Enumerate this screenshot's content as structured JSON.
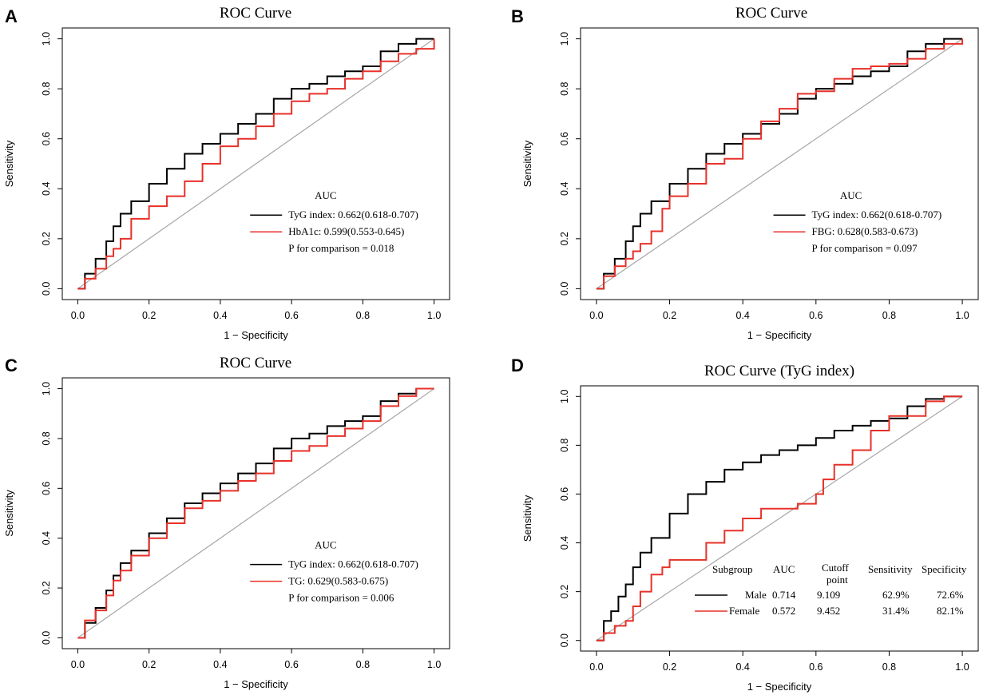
{
  "colors": {
    "black_series": "#000000",
    "red_series": "#e8312a",
    "reference": "#a6a6a6"
  },
  "chart_data": [
    {
      "panel": "A",
      "type": "line",
      "title": "ROC Curve",
      "xlabel": "1 − Specificity",
      "ylabel": "Sensitivity",
      "xlim": [
        0,
        1
      ],
      "ylim": [
        0,
        1
      ],
      "xticks": [
        "0.0",
        "0.2",
        "0.4",
        "0.6",
        "0.8",
        "1.0"
      ],
      "yticks": [
        "0.0",
        "0.2",
        "0.4",
        "0.6",
        "0.8",
        "1.0"
      ],
      "legend_title": "AUC",
      "legend_placement": "bottom-right",
      "series": [
        {
          "name": "TyG index: 0.662(0.618-0.707)",
          "color": "#000000",
          "x": [
            0,
            0.02,
            0.05,
            0.08,
            0.1,
            0.12,
            0.15,
            0.2,
            0.25,
            0.3,
            0.35,
            0.4,
            0.45,
            0.5,
            0.55,
            0.6,
            0.65,
            0.7,
            0.75,
            0.8,
            0.85,
            0.9,
            0.95,
            1.0
          ],
          "y": [
            0,
            0.06,
            0.12,
            0.19,
            0.25,
            0.3,
            0.35,
            0.42,
            0.48,
            0.54,
            0.58,
            0.62,
            0.66,
            0.7,
            0.76,
            0.8,
            0.82,
            0.85,
            0.87,
            0.89,
            0.95,
            0.98,
            1.0,
            1.0
          ]
        },
        {
          "name": "HbA1c:      0.599(0.553-0.645)",
          "color": "#e8312a",
          "x": [
            0,
            0.02,
            0.05,
            0.08,
            0.1,
            0.12,
            0.15,
            0.2,
            0.25,
            0.3,
            0.35,
            0.4,
            0.45,
            0.5,
            0.55,
            0.6,
            0.65,
            0.7,
            0.75,
            0.8,
            0.85,
            0.9,
            0.95,
            1.0
          ],
          "y": [
            0,
            0.04,
            0.08,
            0.13,
            0.16,
            0.2,
            0.28,
            0.33,
            0.37,
            0.43,
            0.5,
            0.57,
            0.6,
            0.65,
            0.7,
            0.75,
            0.78,
            0.8,
            0.84,
            0.87,
            0.91,
            0.94,
            0.96,
            1.0
          ]
        }
      ],
      "legend_note": "P for comparison = 0.018"
    },
    {
      "panel": "B",
      "type": "line",
      "title": "ROC Curve",
      "xlabel": "1 − Specificity",
      "ylabel": "Sensitivity",
      "xlim": [
        0,
        1
      ],
      "ylim": [
        0,
        1
      ],
      "xticks": [
        "0.0",
        "0.2",
        "0.4",
        "0.6",
        "0.8",
        "1.0"
      ],
      "yticks": [
        "0.0",
        "0.2",
        "0.4",
        "0.6",
        "0.8",
        "1.0"
      ],
      "legend_title": "AUC",
      "legend_placement": "bottom-right",
      "series": [
        {
          "name": "TyG index: 0.662(0.618-0.707)",
          "color": "#000000",
          "x": [
            0,
            0.02,
            0.05,
            0.08,
            0.1,
            0.12,
            0.15,
            0.2,
            0.25,
            0.3,
            0.35,
            0.4,
            0.45,
            0.5,
            0.55,
            0.6,
            0.65,
            0.7,
            0.75,
            0.8,
            0.85,
            0.9,
            0.95,
            1.0
          ],
          "y": [
            0,
            0.06,
            0.12,
            0.19,
            0.25,
            0.3,
            0.35,
            0.42,
            0.48,
            0.54,
            0.58,
            0.62,
            0.66,
            0.7,
            0.76,
            0.8,
            0.82,
            0.85,
            0.87,
            0.89,
            0.95,
            0.98,
            1.0,
            1.0
          ]
        },
        {
          "name": "FBG:           0.628(0.583-0.673)",
          "color": "#e8312a",
          "x": [
            0,
            0.02,
            0.05,
            0.08,
            0.1,
            0.12,
            0.15,
            0.18,
            0.2,
            0.25,
            0.3,
            0.35,
            0.4,
            0.45,
            0.5,
            0.55,
            0.6,
            0.65,
            0.7,
            0.75,
            0.8,
            0.85,
            0.9,
            0.95,
            1.0
          ],
          "y": [
            0,
            0.05,
            0.09,
            0.12,
            0.15,
            0.18,
            0.23,
            0.32,
            0.37,
            0.42,
            0.5,
            0.52,
            0.6,
            0.67,
            0.72,
            0.78,
            0.79,
            0.84,
            0.88,
            0.89,
            0.9,
            0.92,
            0.96,
            0.98,
            1.0
          ]
        }
      ],
      "legend_note": "P for comparison = 0.097"
    },
    {
      "panel": "C",
      "type": "line",
      "title": "ROC Curve",
      "xlabel": "1 − Specificity",
      "ylabel": "Sensitivity",
      "xlim": [
        0,
        1
      ],
      "ylim": [
        0,
        1
      ],
      "xticks": [
        "0.0",
        "0.2",
        "0.4",
        "0.6",
        "0.8",
        "1.0"
      ],
      "yticks": [
        "0.0",
        "0.2",
        "0.4",
        "0.6",
        "0.8",
        "1.0"
      ],
      "legend_title": "AUC",
      "legend_placement": "bottom-right",
      "series": [
        {
          "name": "TyG index: 0.662(0.618-0.707)",
          "color": "#000000",
          "x": [
            0,
            0.02,
            0.05,
            0.08,
            0.1,
            0.12,
            0.15,
            0.2,
            0.25,
            0.3,
            0.35,
            0.4,
            0.45,
            0.5,
            0.55,
            0.6,
            0.65,
            0.7,
            0.75,
            0.8,
            0.85,
            0.9,
            0.95,
            1.0
          ],
          "y": [
            0,
            0.06,
            0.12,
            0.19,
            0.25,
            0.3,
            0.35,
            0.42,
            0.48,
            0.54,
            0.58,
            0.62,
            0.66,
            0.7,
            0.76,
            0.8,
            0.82,
            0.85,
            0.87,
            0.89,
            0.95,
            0.98,
            1.0,
            1.0
          ]
        },
        {
          "name": "TG:             0.629(0.583-0.675)",
          "color": "#e8312a",
          "x": [
            0,
            0.02,
            0.05,
            0.08,
            0.1,
            0.12,
            0.15,
            0.2,
            0.25,
            0.3,
            0.35,
            0.4,
            0.45,
            0.5,
            0.55,
            0.6,
            0.65,
            0.7,
            0.75,
            0.8,
            0.85,
            0.9,
            0.95,
            1.0
          ],
          "y": [
            0,
            0.07,
            0.11,
            0.17,
            0.23,
            0.27,
            0.33,
            0.4,
            0.46,
            0.52,
            0.55,
            0.59,
            0.63,
            0.66,
            0.71,
            0.75,
            0.77,
            0.81,
            0.84,
            0.87,
            0.93,
            0.97,
            1.0,
            1.0
          ]
        }
      ],
      "legend_note": "P for comparison = 0.006"
    },
    {
      "panel": "D",
      "type": "line",
      "title": "ROC  Curve (TyG index)",
      "xlabel": "1 − Specificity",
      "ylabel": "Sensitivity",
      "xlim": [
        0,
        1
      ],
      "ylim": [
        0,
        1
      ],
      "xticks": [
        "0.0",
        "0.2",
        "0.4",
        "0.6",
        "0.8",
        "1.0"
      ],
      "yticks": [
        "0.0",
        "0.2",
        "0.4",
        "0.6",
        "0.8",
        "1.0"
      ],
      "legend_placement": "bottom-right",
      "table_headers": [
        "Subgroup",
        "AUC",
        "Cutoff",
        "point",
        "Sensitivity",
        "Specificity"
      ],
      "series": [
        {
          "name": "Male",
          "auc": "0.714",
          "cutoff": "9.109",
          "sensitivity": "62.9%",
          "specificity": "72.6%",
          "color": "#000000",
          "x": [
            0,
            0.02,
            0.04,
            0.06,
            0.08,
            0.1,
            0.12,
            0.15,
            0.2,
            0.25,
            0.3,
            0.35,
            0.4,
            0.45,
            0.5,
            0.55,
            0.6,
            0.65,
            0.7,
            0.75,
            0.8,
            0.85,
            0.9,
            0.95,
            1.0
          ],
          "y": [
            0,
            0.08,
            0.12,
            0.18,
            0.23,
            0.3,
            0.36,
            0.42,
            0.52,
            0.6,
            0.65,
            0.7,
            0.73,
            0.76,
            0.78,
            0.8,
            0.83,
            0.86,
            0.88,
            0.9,
            0.91,
            0.96,
            0.99,
            1.0,
            1.0
          ]
        },
        {
          "name": "Female",
          "auc": "0.572",
          "cutoff": "9.452",
          "sensitivity": "31.4%",
          "specificity": "82.1%",
          "color": "#e8312a",
          "x": [
            0,
            0.02,
            0.05,
            0.08,
            0.1,
            0.12,
            0.15,
            0.18,
            0.2,
            0.25,
            0.3,
            0.35,
            0.4,
            0.45,
            0.5,
            0.55,
            0.6,
            0.62,
            0.65,
            0.7,
            0.75,
            0.8,
            0.85,
            0.9,
            0.95,
            1.0
          ],
          "y": [
            0,
            0.03,
            0.06,
            0.08,
            0.14,
            0.2,
            0.27,
            0.3,
            0.33,
            0.33,
            0.4,
            0.45,
            0.5,
            0.54,
            0.54,
            0.56,
            0.6,
            0.66,
            0.72,
            0.78,
            0.86,
            0.92,
            0.92,
            0.98,
            1.0,
            1.0
          ]
        }
      ]
    }
  ]
}
